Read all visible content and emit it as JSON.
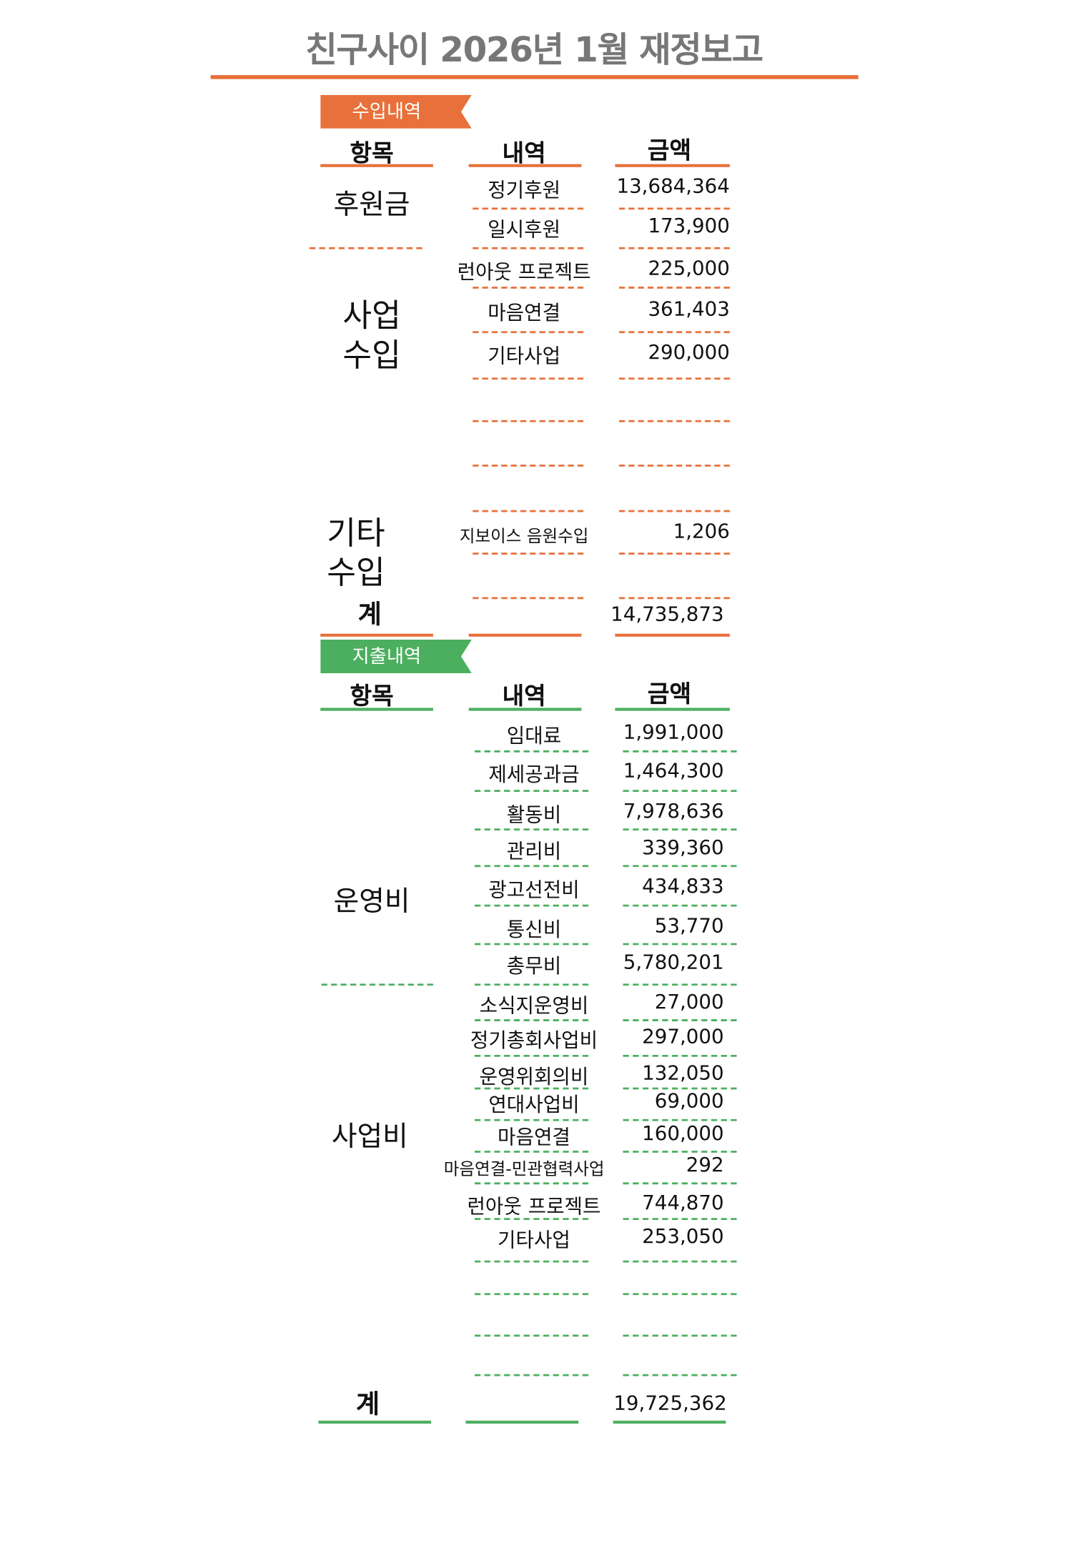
{
  "title": "친구사이 2026년 1월 재정보고",
  "colors": {
    "income": "#E8703A",
    "expense": "#4CAF5F",
    "title": "#777777"
  },
  "income": {
    "tag": "수입내역",
    "headers": {
      "category": "항목",
      "detail": "내역",
      "amount": "금액"
    },
    "categories": {
      "donation": "후원금",
      "business_1": "사업",
      "business_2": "수입",
      "other_1": "기타",
      "other_2": "수입"
    },
    "rows": [
      {
        "detail": "정기후원",
        "amount": "13,684,364"
      },
      {
        "detail": "일시후원",
        "amount": "173,900"
      },
      {
        "detail": "런아웃 프로젝트",
        "amount": "225,000"
      },
      {
        "detail": "마음연결",
        "amount": "361,403"
      },
      {
        "detail": "기타사업",
        "amount": "290,000"
      },
      {
        "detail": "지보이스 음원수입",
        "amount": "1,206"
      }
    ],
    "total_label": "계",
    "total": "14,735,873"
  },
  "expense": {
    "tag": "지출내역",
    "headers": {
      "category": "항목",
      "detail": "내역",
      "amount": "금액"
    },
    "categories": {
      "operating": "운영비",
      "business": "사업비"
    },
    "rows": [
      {
        "detail": "임대료",
        "amount": "1,991,000"
      },
      {
        "detail": "제세공과금",
        "amount": "1,464,300"
      },
      {
        "detail": "활동비",
        "amount": "7,978,636"
      },
      {
        "detail": "관리비",
        "amount": "339,360"
      },
      {
        "detail": "광고선전비",
        "amount": "434,833"
      },
      {
        "detail": "통신비",
        "amount": "53,770"
      },
      {
        "detail": "총무비",
        "amount": "5,780,201"
      },
      {
        "detail": "소식지운영비",
        "amount": "27,000"
      },
      {
        "detail": "정기총회사업비",
        "amount": "297,000"
      },
      {
        "detail": "운영위회의비",
        "amount": "132,050"
      },
      {
        "detail": "연대사업비",
        "amount": "69,000"
      },
      {
        "detail": "마음연결",
        "amount": "160,000"
      },
      {
        "detail": "마음연결-민관협력사업",
        "amount": "292"
      },
      {
        "detail": "런아웃 프로젝트",
        "amount": "744,870"
      },
      {
        "detail": "기타사업",
        "amount": "253,050"
      }
    ],
    "total_label": "계",
    "total": "19,725,362"
  }
}
